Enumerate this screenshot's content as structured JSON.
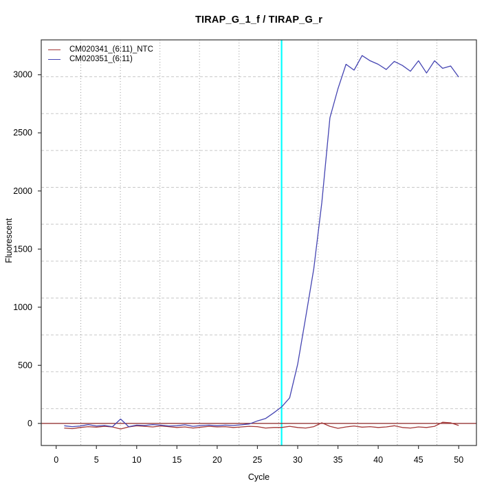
{
  "title": "TIRAP_G_1_f / TIRAP_G_r",
  "chart_data": {
    "type": "line",
    "title": "TIRAP_G_1_f / TIRAP_G_r",
    "xlabel": "Cycle",
    "ylabel": "Fluorescent",
    "x_ticks": [
      0,
      5,
      10,
      15,
      20,
      25,
      30,
      35,
      40,
      45,
      50
    ],
    "y_ticks": [
      0,
      500,
      1000,
      1500,
      2000,
      2500,
      3000
    ],
    "xlim": [
      -1.85,
      52.2
    ],
    "ylim": [
      -190,
      3300
    ],
    "grid": true,
    "legend_position": "top-left",
    "threshold_line": {
      "y": 0,
      "color": "#8B2020"
    },
    "ct_marker_line": {
      "x": 28,
      "color": "#00FFFF"
    },
    "grid_colors": {
      "horizontal": "#C8C8C8",
      "vertical": "#999999"
    },
    "axis_color": "#333333",
    "x": [
      1,
      2,
      3,
      4,
      5,
      6,
      7,
      8,
      9,
      10,
      11,
      12,
      13,
      14,
      15,
      16,
      17,
      18,
      19,
      20,
      21,
      22,
      23,
      24,
      25,
      26,
      27,
      28,
      29,
      30,
      31,
      32,
      33,
      34,
      35,
      36,
      37,
      38,
      39,
      40,
      41,
      42,
      43,
      44,
      45,
      46,
      47,
      48,
      49,
      50
    ],
    "series": [
      {
        "name": "CM020341_(6:11)_NTC",
        "color": "#A23535",
        "values": [
          -40,
          -45,
          -35,
          -28,
          -32,
          -25,
          -30,
          -48,
          -30,
          -20,
          -25,
          -30,
          -22,
          -28,
          -35,
          -30,
          -40,
          -32,
          -25,
          -30,
          -28,
          -35,
          -30,
          -25,
          -28,
          -40,
          -35,
          -35,
          -25,
          -35,
          -40,
          -28,
          5,
          -25,
          -42,
          -30,
          -22,
          -32,
          -28,
          -35,
          -30,
          -20,
          -35,
          -40,
          -30,
          -35,
          -25,
          10,
          5,
          -18
        ]
      },
      {
        "name": "CM020351_(6:11)",
        "color": "#4444B2",
        "values": [
          -20,
          -28,
          -22,
          -10,
          -22,
          -18,
          -28,
          38,
          -28,
          -15,
          -18,
          -10,
          -15,
          -22,
          -20,
          -12,
          -25,
          -18,
          -15,
          -20,
          -15,
          -18,
          -12,
          -5,
          22,
          42,
          90,
          142,
          220,
          510,
          915,
          1330,
          1900,
          2630,
          2880,
          3090,
          3040,
          3165,
          3120,
          3090,
          3045,
          3115,
          3080,
          3030,
          3120,
          3015,
          3120,
          3055,
          3075,
          2980
        ]
      }
    ]
  }
}
